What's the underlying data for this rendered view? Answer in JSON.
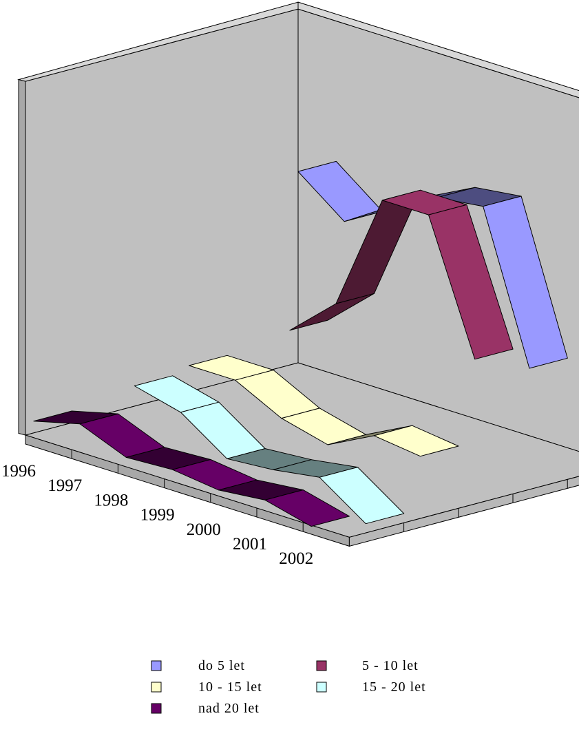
{
  "chart_data": {
    "type": "line",
    "style": "3d-ribbon",
    "categories": [
      "1996",
      "1997",
      "1998",
      "1999",
      "2000",
      "2001",
      "2002"
    ],
    "ylim": [
      0,
      300
    ],
    "yticks": [
      "0",
      "50",
      "100",
      "150",
      "200",
      "250",
      "300"
    ],
    "grid": false,
    "legend_position": "bottom",
    "series": [
      {
        "name": "do 5 let",
        "color": "#9999ff",
        "values": [
          null,
          185,
          155,
          180,
          200,
          205,
          80
        ]
      },
      {
        "name": "5 - 10 let",
        "color": "#993366",
        "values": [
          null,
          null,
          75,
          110,
          210,
          210,
          100
        ]
      },
      {
        "name": "10 - 15 let",
        "color": "#ffffcc",
        "values": [
          null,
          45,
          45,
          25,
          15,
          35,
          30
        ]
      },
      {
        "name": "15 - 20 let",
        "color": "#ccffff",
        "values": [
          null,
          40,
          30,
          3,
          6,
          12,
          -15
        ]
      },
      {
        "name": "nad 20 let",
        "color": "#660066",
        "values": [
          10,
          20,
          4,
          6,
          1,
          5,
          -5
        ]
      }
    ]
  }
}
